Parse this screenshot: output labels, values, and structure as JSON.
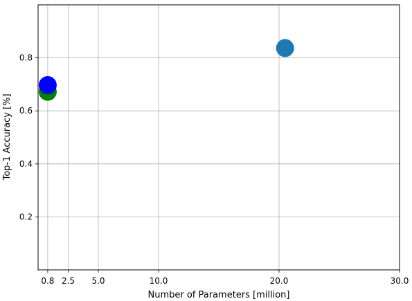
{
  "chart_data": {
    "type": "scatter",
    "xlabel": "Number of Parameters [million]",
    "ylabel": "Top-1 Accuracy [%]",
    "xlim": [
      0,
      30
    ],
    "ylim": [
      0,
      1.0
    ],
    "xticks": [
      {
        "value": 0.8,
        "label": "0.8"
      },
      {
        "value": 2.5,
        "label": "2.5"
      },
      {
        "value": 5.0,
        "label": "5.0"
      },
      {
        "value": 10.0,
        "label": "10.0"
      },
      {
        "value": 20.0,
        "label": "20.0"
      },
      {
        "value": 30.0,
        "label": "30.0"
      }
    ],
    "yticks": [
      {
        "value": 0.2,
        "label": "0.2"
      },
      {
        "value": 0.4,
        "label": "0.4"
      },
      {
        "value": 0.6,
        "label": "0.6"
      },
      {
        "value": 0.8,
        "label": "0.8"
      }
    ],
    "grid": true,
    "points": [
      {
        "x": 20.5,
        "y": 0.837,
        "color": "#1f77b4"
      },
      {
        "x": 0.8,
        "y": 0.672,
        "color": "#008000"
      },
      {
        "x": 0.8,
        "y": 0.697,
        "color": "#0000ff"
      }
    ]
  }
}
